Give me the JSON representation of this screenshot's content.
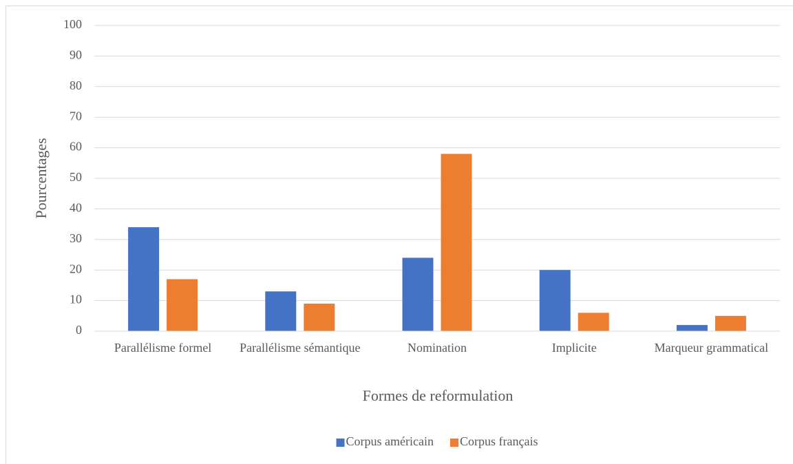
{
  "chart_data": {
    "type": "bar",
    "xlabel": "Formes de reformulation",
    "ylabel": "Pourcentages",
    "categories": [
      "Parallélisme formel",
      "Parallélisme sémantique",
      "Nomination",
      "Implicite",
      "Marqueur grammatical"
    ],
    "series": [
      {
        "name": "Corpus américain",
        "color": "#4472c4",
        "values": [
          34,
          13,
          24,
          20,
          2
        ]
      },
      {
        "name": "Corpus français",
        "color": "#ed7d31",
        "values": [
          17,
          9,
          58,
          6,
          5
        ]
      }
    ],
    "ylim": [
      0,
      100
    ],
    "yticks": [
      0,
      10,
      20,
      30,
      40,
      50,
      60,
      70,
      80,
      90,
      100
    ],
    "grid": true,
    "legend": "bottom"
  }
}
